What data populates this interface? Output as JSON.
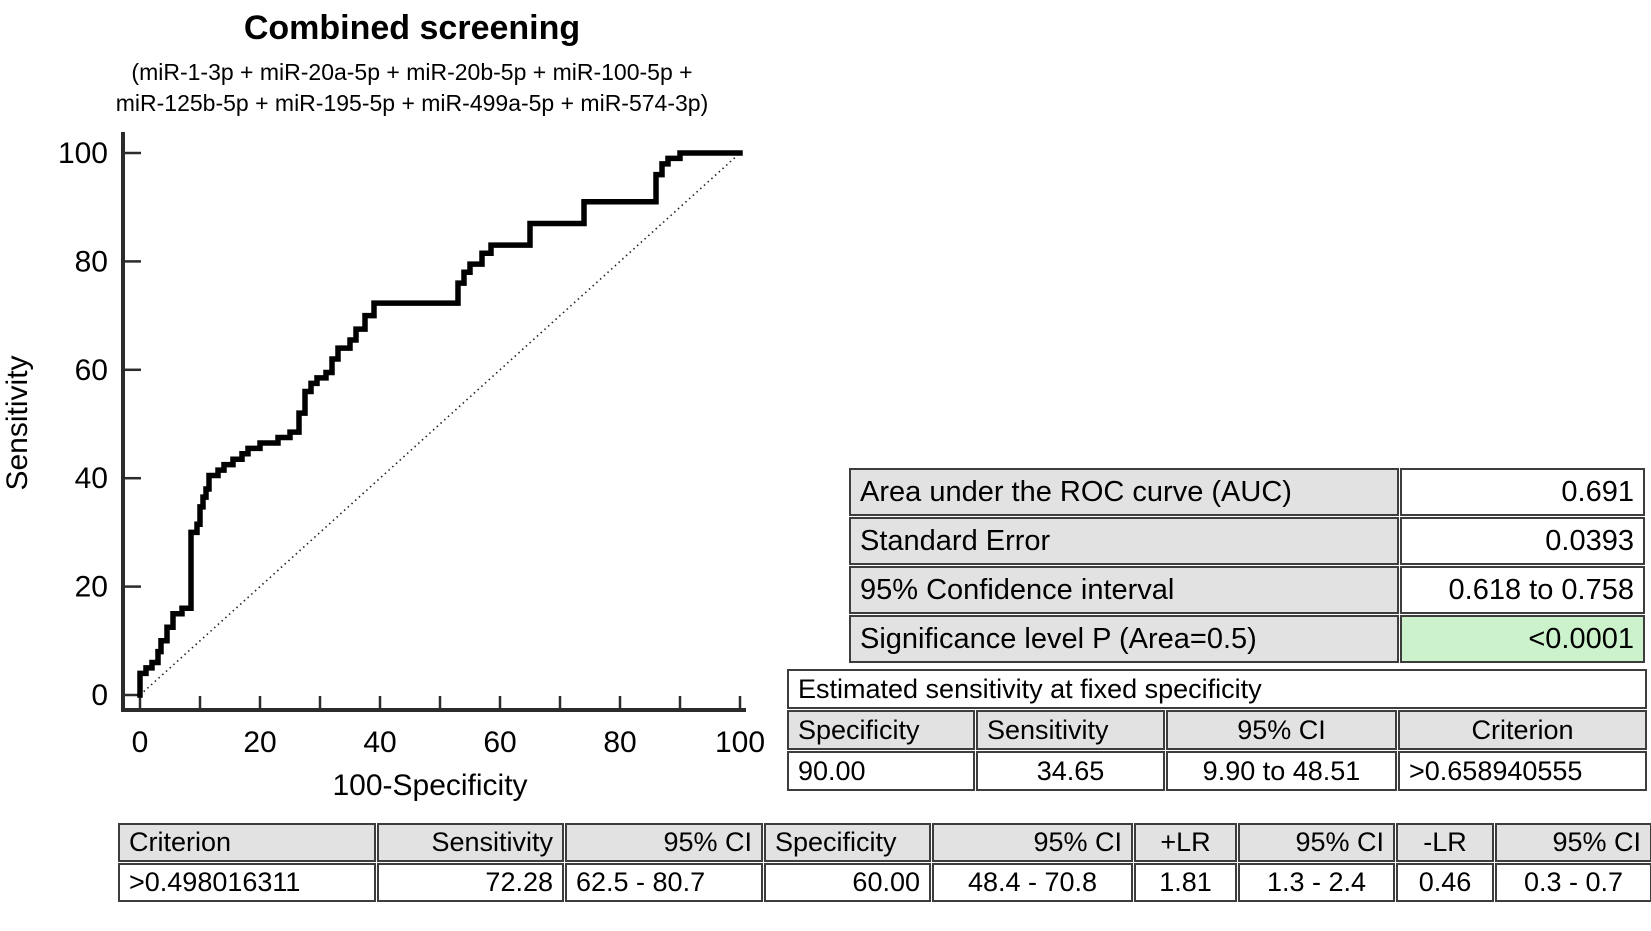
{
  "chart_data": {
    "type": "line",
    "title": "Combined screening",
    "subtitle_lines": [
      "(miR-1-3p + miR-20a-5p + miR-20b-5p + miR-100-5p +",
      "miR-125b-5p + miR-195-5p + miR-499a-5p + miR-574-3p)"
    ],
    "xlabel": "100-Specificity",
    "ylabel": "Sensitivity",
    "xlim": [
      0,
      100
    ],
    "ylim": [
      0,
      100
    ],
    "grid": false,
    "x_tick_labels": [
      0,
      20,
      40,
      60,
      80,
      100
    ],
    "x_minor_ticks": [
      0,
      10,
      20,
      30,
      40,
      50,
      60,
      70,
      80,
      90,
      100
    ],
    "y_tick_labels": [
      0,
      20,
      40,
      60,
      80,
      100
    ],
    "series": [
      {
        "name": "ROC curve",
        "style": "step-solid",
        "points": [
          [
            0,
            0
          ],
          [
            0,
            4
          ],
          [
            1,
            4
          ],
          [
            1,
            5
          ],
          [
            2,
            5
          ],
          [
            2,
            6
          ],
          [
            3,
            6
          ],
          [
            3,
            8
          ],
          [
            3.5,
            8
          ],
          [
            3.5,
            10
          ],
          [
            4.5,
            10
          ],
          [
            4.5,
            12.5
          ],
          [
            5.5,
            12.5
          ],
          [
            5.5,
            15
          ],
          [
            7,
            15
          ],
          [
            7,
            16
          ],
          [
            8.5,
            16
          ],
          [
            8.5,
            30
          ],
          [
            9.5,
            30
          ],
          [
            9.5,
            31.5
          ],
          [
            10,
            31.5
          ],
          [
            10,
            34.7
          ],
          [
            10.5,
            34.7
          ],
          [
            10.5,
            36.5
          ],
          [
            11,
            36.5
          ],
          [
            11,
            38
          ],
          [
            11.5,
            38
          ],
          [
            11.5,
            40.5
          ],
          [
            13,
            40.5
          ],
          [
            13,
            41.5
          ],
          [
            14,
            41.5
          ],
          [
            14,
            42.5
          ],
          [
            15.5,
            42.5
          ],
          [
            15.5,
            43.5
          ],
          [
            17,
            43.5
          ],
          [
            17,
            44.5
          ],
          [
            18,
            44.5
          ],
          [
            18,
            45.5
          ],
          [
            20,
            45.5
          ],
          [
            20,
            46.5
          ],
          [
            23,
            46.5
          ],
          [
            23,
            47.5
          ],
          [
            25,
            47.5
          ],
          [
            25,
            48.5
          ],
          [
            26.5,
            48.5
          ],
          [
            26.5,
            52
          ],
          [
            27.5,
            52
          ],
          [
            27.5,
            56
          ],
          [
            28.5,
            56
          ],
          [
            28.5,
            57.5
          ],
          [
            29.5,
            57.5
          ],
          [
            29.5,
            58.5
          ],
          [
            31,
            58.5
          ],
          [
            31,
            59.5
          ],
          [
            32,
            59.5
          ],
          [
            32,
            62
          ],
          [
            33,
            62
          ],
          [
            33,
            64
          ],
          [
            35,
            64
          ],
          [
            35,
            65.5
          ],
          [
            36,
            65.5
          ],
          [
            36,
            67.5
          ],
          [
            37.5,
            67.5
          ],
          [
            37.5,
            70
          ],
          [
            39,
            70
          ],
          [
            39,
            72.3
          ],
          [
            53,
            72.3
          ],
          [
            53,
            76
          ],
          [
            54,
            76
          ],
          [
            54,
            78
          ],
          [
            55,
            78
          ],
          [
            55,
            79.5
          ],
          [
            57,
            79.5
          ],
          [
            57,
            81.5
          ],
          [
            58.5,
            81.5
          ],
          [
            58.5,
            83
          ],
          [
            65,
            83
          ],
          [
            65,
            87
          ],
          [
            74,
            87
          ],
          [
            74,
            91
          ],
          [
            86,
            91
          ],
          [
            86,
            96
          ],
          [
            87,
            96
          ],
          [
            87,
            98
          ],
          [
            88,
            98
          ],
          [
            88,
            99
          ],
          [
            90,
            99
          ],
          [
            90,
            100
          ],
          [
            100,
            100
          ]
        ]
      },
      {
        "name": "Reference diagonal",
        "style": "dotted",
        "points": [
          [
            0,
            0
          ],
          [
            100,
            100
          ]
        ]
      }
    ]
  },
  "auc_table": {
    "rows": [
      {
        "label": "Area under the ROC curve (AUC)",
        "value": "0.691"
      },
      {
        "label": "Standard Error",
        "value": "0.0393"
      },
      {
        "label": "95% Confidence interval",
        "value": "0.618 to 0.758"
      },
      {
        "label": "Significance level P (Area=0.5)",
        "value": "<0.0001"
      }
    ]
  },
  "fixed_specificity_table": {
    "title": "Estimated sensitivity at fixed specificity",
    "headers": [
      "Specificity",
      "Sensitivity",
      "95% CI",
      "Criterion"
    ],
    "rows": [
      [
        "90.00",
        "34.65",
        "9.90 to 48.51",
        ">0.658940555"
      ]
    ]
  },
  "criterion_table": {
    "headers": [
      "Criterion",
      "Sensitivity",
      "95% CI",
      "Specificity",
      "95% CI",
      "+LR",
      "95% CI",
      "-LR",
      "95% CI"
    ],
    "rows": [
      [
        ">0.498016311",
        "72.28",
        "62.5 - 80.7",
        "60.00",
        "48.4 - 70.8",
        "1.81",
        "1.3 - 2.4",
        "0.46",
        "0.3 - 0.7"
      ]
    ]
  },
  "colors": {
    "curve": "#000000",
    "axis": "#2b2b2b",
    "header_bg": "#e2e2e2",
    "highlight_bg": "#ccf2cc",
    "border": "#3d3d3d"
  }
}
